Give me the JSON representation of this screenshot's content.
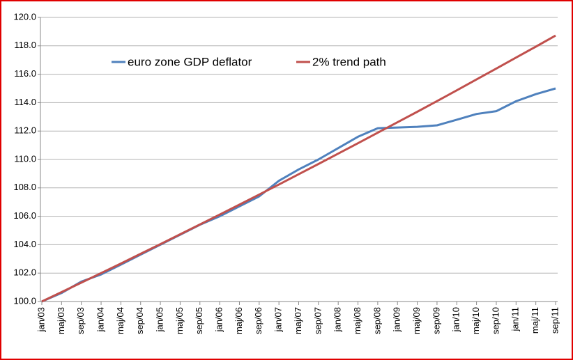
{
  "chart_data": {
    "type": "line",
    "categories": [
      "jan/03",
      "maj/03",
      "sep/03",
      "jan/04",
      "maj/04",
      "sep/04",
      "jan/05",
      "maj/05",
      "sep/05",
      "jan/06",
      "maj/06",
      "sep/06",
      "jan/07",
      "maj/07",
      "sep/07",
      "jan/08",
      "maj/08",
      "sep/08",
      "jan/09",
      "maj/09",
      "sep/09",
      "jan/10",
      "maj/10",
      "sep/10",
      "jan/11",
      "maj/11",
      "sep/11"
    ],
    "series": [
      {
        "name": "euro zone GDP deflator",
        "color": "#4f81bd",
        "values": [
          100.0,
          100.6,
          101.4,
          101.9,
          102.6,
          103.3,
          104.0,
          104.7,
          105.4,
          106.0,
          106.7,
          107.4,
          108.5,
          109.3,
          110.0,
          110.8,
          111.6,
          112.2,
          112.25,
          112.3,
          112.4,
          112.8,
          113.2,
          113.4,
          114.1,
          114.6,
          115.0
        ]
      },
      {
        "name": "2% trend path",
        "color": "#c0504d",
        "values": [
          100.0,
          100.66,
          101.33,
          102.0,
          102.67,
          103.36,
          104.04,
          104.73,
          105.42,
          106.12,
          106.82,
          107.53,
          108.24,
          108.96,
          109.68,
          110.41,
          111.14,
          111.88,
          112.62,
          113.36,
          114.11,
          114.87,
          115.63,
          116.4,
          117.17,
          117.94,
          118.72
        ]
      }
    ],
    "ylim": [
      100,
      120
    ],
    "yticks": [
      {
        "value": 100,
        "label": "100.0"
      },
      {
        "value": 102,
        "label": "102.0"
      },
      {
        "value": 104,
        "label": "104.0"
      },
      {
        "value": 106,
        "label": "106.0"
      },
      {
        "value": 108,
        "label": "108.0"
      },
      {
        "value": 110,
        "label": "110.0"
      },
      {
        "value": 112,
        "label": "112.0"
      },
      {
        "value": 114,
        "label": "114.0"
      },
      {
        "value": 116,
        "label": "116.0"
      },
      {
        "value": 118,
        "label": "118.0"
      },
      {
        "value": 120,
        "label": "120.0"
      }
    ],
    "grid": true,
    "legend": "top"
  }
}
